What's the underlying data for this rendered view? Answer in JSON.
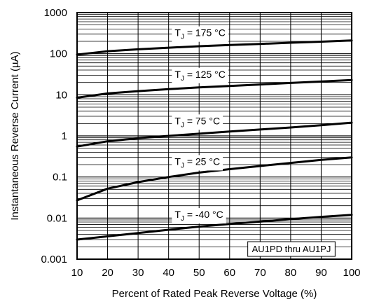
{
  "chart_data": {
    "type": "line",
    "title": "",
    "xlabel": "Percent of Rated Peak Reverse Voltage (%)",
    "ylabel": "Instantaneous Reverse Current (µA)",
    "x_scale": "linear",
    "y_scale": "log",
    "xlim": [
      10,
      100
    ],
    "ylim": [
      0.001,
      1000
    ],
    "x_ticks": [
      "10",
      "20",
      "30",
      "40",
      "50",
      "60",
      "70",
      "80",
      "90",
      "100"
    ],
    "y_ticks": [
      "0.001",
      "0.01",
      "0.1",
      "1",
      "10",
      "100",
      "1000"
    ],
    "grid": true,
    "x": [
      10,
      20,
      30,
      40,
      50,
      60,
      70,
      80,
      90,
      100
    ],
    "series": [
      {
        "name_main": "T",
        "name_sub": "J",
        "name_rest": " = 175 °C",
        "label_x": 42,
        "values": [
          95,
          115,
          128,
          140,
          152,
          163,
          173,
          185,
          196,
          210
        ]
      },
      {
        "name_main": "T",
        "name_sub": "J",
        "name_rest": " = 125 °C",
        "label_x": 42,
        "values": [
          8.5,
          10.8,
          12.3,
          13.7,
          15.1,
          16.4,
          17.8,
          19.4,
          21.0,
          22.8
        ]
      },
      {
        "name_main": "T",
        "name_sub": "J",
        "name_rest": " = 75 °C",
        "label_x": 42,
        "values": [
          0.55,
          0.74,
          0.88,
          1.0,
          1.13,
          1.28,
          1.43,
          1.6,
          1.82,
          2.1
        ]
      },
      {
        "name_main": "T",
        "name_sub": "J",
        "name_rest": " = 25 °C",
        "label_x": 42,
        "values": [
          0.027,
          0.052,
          0.075,
          0.1,
          0.128,
          0.155,
          0.185,
          0.22,
          0.26,
          0.3
        ]
      },
      {
        "name_main": "T",
        "name_sub": "J",
        "name_rest": " = -40 °C",
        "label_x": 42,
        "values": [
          0.003,
          0.0036,
          0.0043,
          0.0052,
          0.0062,
          0.0072,
          0.0082,
          0.0094,
          0.0107,
          0.012
        ]
      }
    ],
    "annotation": "AU1PD thru AU1PJ",
    "annotation_position": "bottom-right",
    "colors": {
      "line": "#000000",
      "grid": "#000000",
      "background": "#ffffff"
    }
  }
}
